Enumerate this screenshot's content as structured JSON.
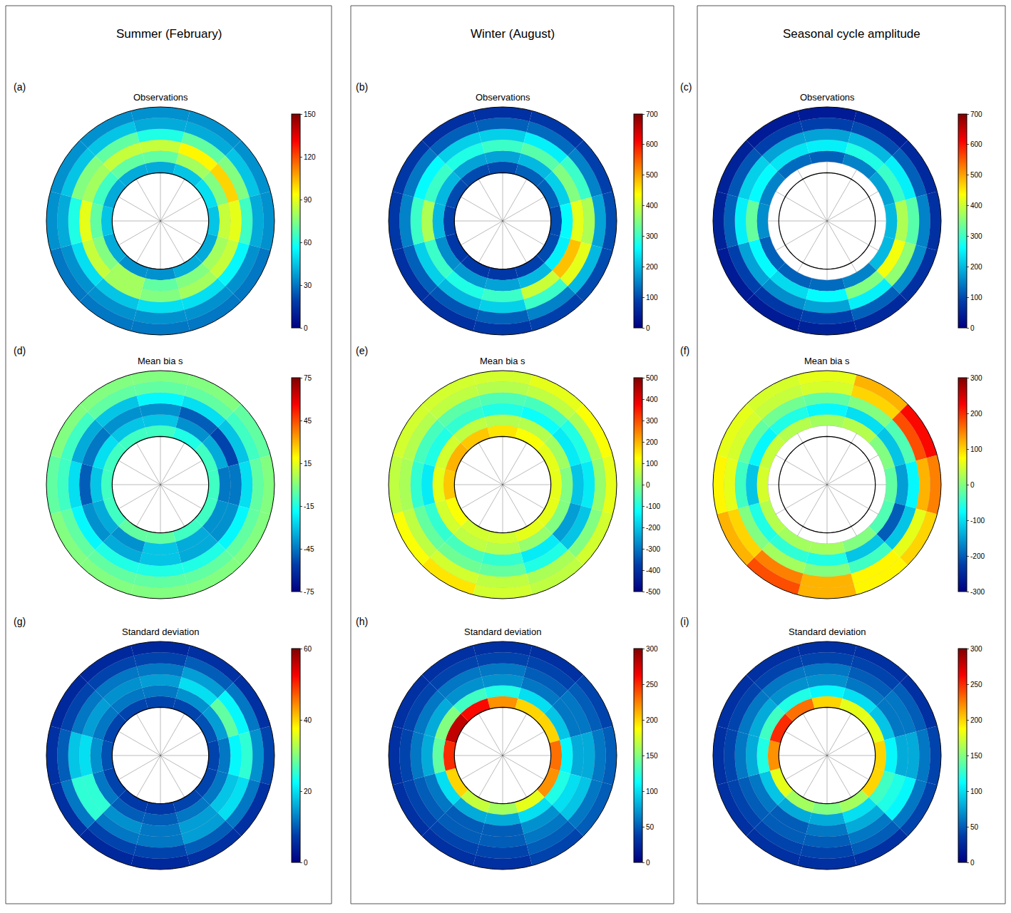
{
  "columns": [
    "Summer (February)",
    "Winter (August)",
    "Seasonal cycle amplitude"
  ],
  "chart_data": [
    {
      "type": "polar_heatmap",
      "label": "(a)",
      "title": "Observations",
      "grid": true,
      "tick_labels": false,
      "lat": [
        -68,
        -63,
        -58,
        -53,
        -48,
        -43,
        -38
      ],
      "lon": [
        0,
        30,
        60,
        90,
        120,
        150,
        180,
        210,
        240,
        270,
        300,
        330
      ],
      "cells": [
        [
          40,
          45,
          50,
          45,
          40,
          40,
          35,
          35,
          40,
          45,
          40,
          40
        ],
        [
          70,
          80,
          75,
          85,
          80,
          75,
          70,
          80,
          75,
          70,
          65,
          70
        ],
        [
          85,
          95,
          100,
          90,
          85,
          80,
          75,
          80,
          85,
          90,
          80,
          85
        ],
        [
          60,
          70,
          75,
          65,
          55,
          50,
          50,
          45,
          50,
          60,
          75,
          70
        ],
        [
          40,
          40,
          45,
          40,
          35,
          35,
          35,
          35,
          35,
          40,
          45,
          45
        ],
        [
          35,
          35,
          35,
          35,
          30,
          30,
          30,
          30,
          30,
          35,
          35,
          35
        ]
      ],
      "colorbar": {
        "range": [
          0,
          150
        ],
        "ticks": [
          0,
          30,
          60,
          90,
          120,
          150
        ]
      }
    },
    {
      "type": "polar_heatmap",
      "label": "(b)",
      "title": "Observations",
      "grid": true,
      "tick_labels": false,
      "lat": [
        -68,
        -63,
        -58,
        -53,
        -48,
        -43,
        -38
      ],
      "lon": [
        0,
        30,
        60,
        90,
        120,
        150,
        180,
        210,
        240,
        270,
        300,
        330
      ],
      "cells": [
        [
          100,
          120,
          120,
          100,
          100,
          90,
          80,
          80,
          80,
          90,
          100,
          100
        ],
        [
          180,
          200,
          220,
          260,
          250,
          200,
          180,
          170,
          160,
          200,
          200,
          180
        ],
        [
          300,
          320,
          350,
          420,
          480,
          400,
          300,
          280,
          300,
          380,
          300,
          280
        ],
        [
          220,
          250,
          300,
          380,
          420,
          300,
          220,
          200,
          220,
          300,
          260,
          220
        ],
        [
          120,
          130,
          150,
          180,
          200,
          150,
          120,
          110,
          120,
          150,
          140,
          120
        ],
        [
          70,
          80,
          90,
          100,
          100,
          90,
          80,
          70,
          70,
          80,
          80,
          70
        ]
      ],
      "colorbar": {
        "range": [
          0,
          700
        ],
        "ticks": [
          0,
          100,
          200,
          300,
          400,
          500,
          600,
          700
        ]
      }
    },
    {
      "type": "polar_heatmap",
      "label": "(c)",
      "title": "Observations",
      "grid": true,
      "tick_labels": false,
      "lat": [
        -68,
        -63,
        -58,
        -53,
        -48,
        -43,
        -38
      ],
      "lon": [
        0,
        30,
        60,
        90,
        120,
        150,
        180,
        210,
        240,
        270,
        300,
        330
      ],
      "cells": [
        [
          null,
          null,
          null,
          null,
          null,
          null,
          null,
          null,
          null,
          null,
          null,
          null
        ],
        [
          120,
          150,
          180,
          200,
          200,
          150,
          130,
          120,
          120,
          160,
          150,
          130
        ],
        [
          250,
          280,
          300,
          380,
          430,
          350,
          260,
          230,
          260,
          330,
          260,
          240
        ],
        [
          180,
          200,
          250,
          320,
          360,
          250,
          180,
          160,
          180,
          250,
          220,
          180
        ],
        [
          90,
          100,
          120,
          150,
          160,
          120,
          90,
          80,
          90,
          120,
          110,
          90
        ],
        [
          40,
          50,
          60,
          70,
          70,
          60,
          50,
          40,
          40,
          50,
          50,
          40
        ]
      ],
      "colorbar": {
        "range": [
          0,
          700
        ],
        "ticks": [
          0,
          100,
          200,
          300,
          400,
          500,
          600,
          700
        ]
      }
    },
    {
      "type": "polar_heatmap",
      "label": "(d)",
      "title": "Mean bia s",
      "grid": true,
      "tick_labels": false,
      "lat": [
        -68,
        -63,
        -58,
        -53,
        -48,
        -43,
        -38
      ],
      "lon": [
        0,
        30,
        60,
        90,
        120,
        150,
        180,
        210,
        240,
        270,
        300,
        330
      ],
      "cells": [
        [
          -10,
          -15,
          -10,
          -10,
          -10,
          -10,
          -5,
          -5,
          -10,
          -10,
          -10,
          -10
        ],
        [
          -30,
          -40,
          -35,
          -45,
          -40,
          -35,
          -30,
          -40,
          -35,
          -30,
          -25,
          -30
        ],
        [
          -40,
          -50,
          -55,
          -45,
          -40,
          -35,
          -30,
          -35,
          -40,
          -50,
          -45,
          -40
        ],
        [
          -20,
          -25,
          -30,
          -25,
          -20,
          -15,
          -15,
          -15,
          -20,
          -25,
          -35,
          -30
        ],
        [
          -5,
          -5,
          -10,
          -5,
          -5,
          -5,
          -5,
          -5,
          -5,
          -10,
          -10,
          -5
        ],
        [
          0,
          0,
          -5,
          0,
          0,
          0,
          0,
          0,
          0,
          -5,
          0,
          0
        ]
      ],
      "colorbar": {
        "range": [
          -75,
          75
        ],
        "ticks": [
          -75,
          -45,
          -15,
          15,
          45,
          75
        ]
      }
    },
    {
      "type": "polar_heatmap",
      "label": "(e)",
      "title": "Mean bia s",
      "grid": true,
      "tick_labels": false,
      "lat": [
        -68,
        -63,
        -58,
        -53,
        -48,
        -43,
        -38
      ],
      "lon": [
        0,
        30,
        60,
        90,
        120,
        150,
        180,
        210,
        240,
        270,
        300,
        330
      ],
      "cells": [
        [
          150,
          120,
          100,
          100,
          100,
          100,
          80,
          80,
          120,
          180,
          200,
          180
        ],
        [
          50,
          50,
          30,
          0,
          0,
          20,
          50,
          60,
          80,
          100,
          80,
          60
        ],
        [
          -100,
          -120,
          -150,
          -200,
          -250,
          -150,
          -80,
          -60,
          -80,
          -150,
          -100,
          -80
        ],
        [
          -50,
          -60,
          -100,
          -150,
          -200,
          -100,
          -30,
          -20,
          -30,
          -80,
          -60,
          -40
        ],
        [
          50,
          60,
          40,
          20,
          0,
          40,
          60,
          80,
          60,
          40,
          50,
          60
        ],
        [
          80,
          100,
          120,
          100,
          80,
          60,
          80,
          150,
          120,
          60,
          80,
          80
        ]
      ],
      "colorbar": {
        "range": [
          -500,
          500
        ],
        "ticks": [
          -500,
          -400,
          -300,
          -200,
          -100,
          0,
          100,
          200,
          300,
          400,
          500
        ]
      }
    },
    {
      "type": "polar_heatmap",
      "label": "(f)",
      "title": "Mean bia s",
      "grid": true,
      "tick_labels": false,
      "lat": [
        -68,
        -63,
        -58,
        -53,
        -48,
        -43,
        -38
      ],
      "lon": [
        0,
        30,
        60,
        90,
        120,
        150,
        180,
        210,
        240,
        270,
        300,
        330
      ],
      "cells": [
        [
          null,
          null,
          null,
          null,
          null,
          null,
          null,
          null,
          null,
          null,
          null,
          null
        ],
        [
          20,
          30,
          0,
          -20,
          -30,
          0,
          20,
          20,
          30,
          50,
          40,
          30
        ],
        [
          -80,
          -100,
          -120,
          -150,
          -200,
          -120,
          -60,
          -50,
          -60,
          -120,
          -80,
          -60
        ],
        [
          -20,
          0,
          -30,
          -80,
          -120,
          -40,
          0,
          20,
          0,
          -40,
          -20,
          -10
        ],
        [
          50,
          100,
          180,
          120,
          60,
          80,
          120,
          150,
          100,
          60,
          50,
          40
        ],
        [
          60,
          120,
          220,
          150,
          100,
          80,
          120,
          180,
          120,
          80,
          60,
          50
        ]
      ],
      "colorbar": {
        "range": [
          -300,
          300
        ],
        "ticks": [
          -300,
          -200,
          -100,
          0,
          100,
          200,
          300
        ]
      }
    },
    {
      "type": "polar_heatmap",
      "label": "(g)",
      "title": "Standard deviation",
      "grid": true,
      "tick_labels": false,
      "lat": [
        -68,
        -63,
        -58,
        -53,
        -48,
        -43,
        -38
      ],
      "lon": [
        0,
        30,
        60,
        90,
        120,
        150,
        180,
        210,
        240,
        270,
        300,
        330
      ],
      "cells": [
        [
          8,
          8,
          9,
          8,
          8,
          8,
          7,
          7,
          8,
          9,
          8,
          8
        ],
        [
          12,
          14,
          15,
          12,
          12,
          12,
          10,
          10,
          12,
          14,
          12,
          12
        ],
        [
          15,
          20,
          28,
          22,
          18,
          15,
          12,
          14,
          25,
          20,
          15,
          14
        ],
        [
          12,
          15,
          22,
          25,
          20,
          15,
          12,
          12,
          25,
          18,
          12,
          12
        ],
        [
          8,
          10,
          12,
          14,
          12,
          10,
          8,
          8,
          12,
          10,
          8,
          8
        ],
        [
          5,
          6,
          6,
          8,
          6,
          6,
          5,
          5,
          6,
          6,
          5,
          5
        ]
      ],
      "colorbar": {
        "range": [
          0,
          60
        ],
        "ticks": [
          0,
          20,
          40,
          60
        ]
      }
    },
    {
      "type": "polar_heatmap",
      "label": "(h)",
      "title": "Standard deviation",
      "grid": true,
      "tick_labels": false,
      "lat": [
        -68,
        -63,
        -58,
        -53,
        -48,
        -43,
        -38
      ],
      "lon": [
        0,
        30,
        60,
        90,
        120,
        150,
        180,
        210,
        240,
        270,
        300,
        330
      ],
      "cells": [
        [
          220,
          200,
          200,
          230,
          220,
          180,
          160,
          170,
          200,
          250,
          280,
          260
        ],
        [
          120,
          100,
          90,
          110,
          120,
          100,
          80,
          80,
          100,
          140,
          150,
          130
        ],
        [
          70,
          60,
          60,
          80,
          100,
          70,
          50,
          50,
          60,
          80,
          80,
          70
        ],
        [
          60,
          50,
          60,
          80,
          90,
          60,
          50,
          50,
          50,
          60,
          60,
          60
        ],
        [
          40,
          40,
          50,
          60,
          60,
          50,
          40,
          40,
          40,
          40,
          40,
          40
        ],
        [
          30,
          30,
          40,
          50,
          50,
          40,
          30,
          30,
          30,
          30,
          30,
          30
        ]
      ],
      "colorbar": {
        "range": [
          0,
          300
        ],
        "ticks": [
          0,
          50,
          100,
          150,
          200,
          250,
          300
        ]
      }
    },
    {
      "type": "polar_heatmap",
      "label": "(i)",
      "title": "Standard deviation",
      "grid": true,
      "tick_labels": false,
      "lat": [
        -68,
        -63,
        -58,
        -53,
        -48,
        -43,
        -38
      ],
      "lon": [
        0,
        30,
        60,
        90,
        120,
        150,
        180,
        210,
        240,
        270,
        300,
        330
      ],
      "cells": [
        [
          200,
          180,
          180,
          200,
          200,
          160,
          150,
          160,
          180,
          220,
          250,
          230
        ],
        [
          110,
          100,
          90,
          110,
          130,
          100,
          80,
          80,
          90,
          120,
          130,
          120
        ],
        [
          70,
          60,
          60,
          80,
          120,
          80,
          60,
          50,
          60,
          80,
          80,
          70
        ],
        [
          60,
          50,
          60,
          80,
          110,
          60,
          50,
          50,
          50,
          60,
          60,
          60
        ],
        [
          40,
          40,
          50,
          60,
          60,
          50,
          40,
          40,
          40,
          40,
          40,
          40
        ],
        [
          30,
          30,
          30,
          40,
          40,
          30,
          30,
          30,
          30,
          30,
          30,
          30
        ]
      ],
      "colorbar": {
        "range": [
          0,
          300
        ],
        "ticks": [
          0,
          50,
          100,
          150,
          200,
          250,
          300
        ]
      }
    }
  ]
}
